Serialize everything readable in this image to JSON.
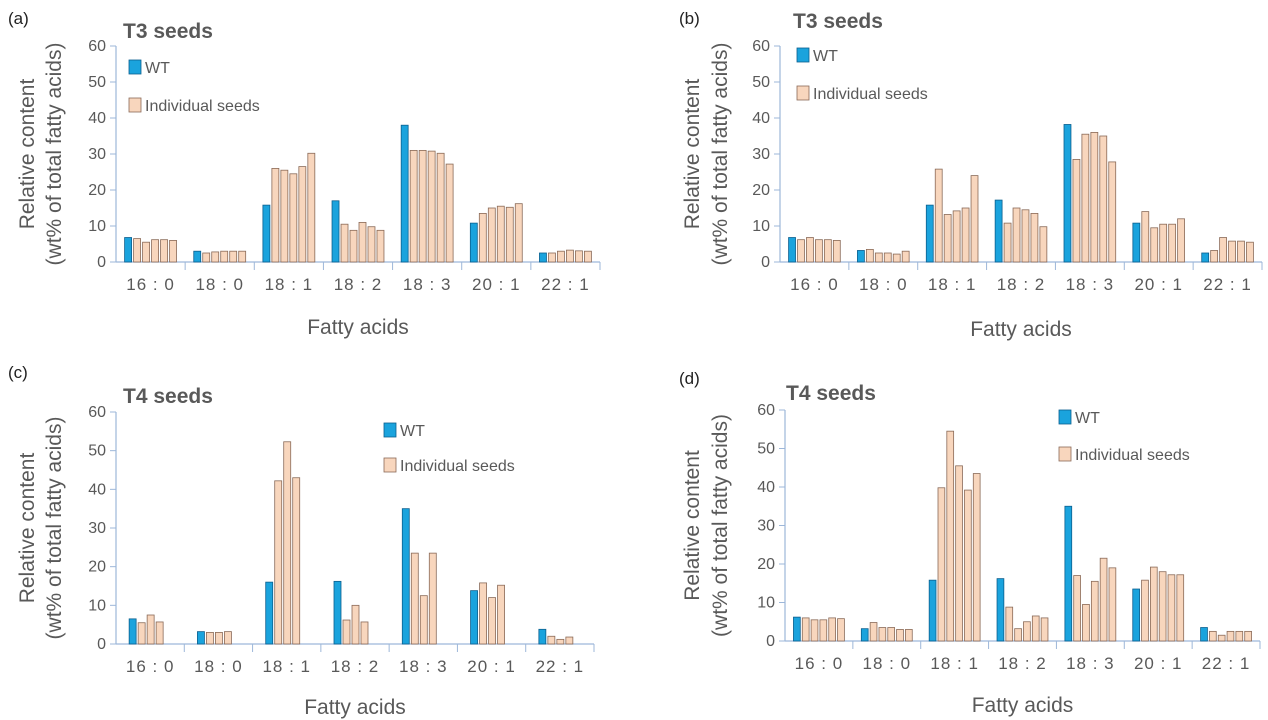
{
  "chart_data": [
    {
      "panel": "(a)",
      "type": "bar",
      "title": "T3 seeds",
      "xlabel": "Fatty acids",
      "ylabel": [
        "Relative content",
        "(wt% of total fatty acids)"
      ],
      "ylim": [
        0,
        60
      ],
      "yticks": [
        0,
        10,
        20,
        30,
        40,
        50,
        60
      ],
      "legend_position": "top-left",
      "colors": {
        "WT": "#1aa3dd",
        "Individual seeds": "#f8d6bd"
      },
      "categories": [
        "16:0",
        "18:0",
        "18:1",
        "18:2",
        "18:3",
        "20:1",
        "22:1"
      ],
      "series": [
        {
          "name": "WT",
          "values": [
            6.8,
            3.0,
            15.8,
            17.0,
            38.0,
            10.8,
            2.5
          ]
        },
        {
          "name": "Individual seeds",
          "values": [
            [
              6.5,
              5.5,
              6.2,
              6.2,
              6.0
            ],
            [
              2.5,
              2.8,
              3.0,
              3.0,
              3.0
            ],
            [
              26.0,
              25.5,
              24.5,
              26.5,
              30.2
            ],
            [
              10.5,
              8.8,
              11.0,
              9.8,
              8.8
            ],
            [
              31.0,
              31.0,
              30.8,
              30.2,
              27.2
            ],
            [
              13.5,
              15.0,
              15.5,
              15.2,
              16.2
            ],
            [
              2.5,
              3.0,
              3.3,
              3.1,
              3.0
            ]
          ]
        }
      ]
    },
    {
      "panel": "(b)",
      "type": "bar",
      "title": "T3 seeds",
      "xlabel": "Fatty acids",
      "ylabel": [
        "Relative content",
        "(wt% of total fatty acids)"
      ],
      "ylim": [
        0,
        60
      ],
      "yticks": [
        0,
        10,
        20,
        30,
        40,
        50,
        60
      ],
      "legend_position": "top-left",
      "colors": {
        "WT": "#1aa3dd",
        "Individual seeds": "#f8d6bd"
      },
      "categories": [
        "16:0",
        "18:0",
        "18:1",
        "18:2",
        "18:3",
        "20:1",
        "22:1"
      ],
      "series": [
        {
          "name": "WT",
          "values": [
            6.8,
            3.2,
            15.8,
            17.2,
            38.2,
            10.8,
            2.5
          ]
        },
        {
          "name": "Individual seeds",
          "values": [
            [
              6.2,
              6.8,
              6.2,
              6.2,
              6.0
            ],
            [
              3.5,
              2.5,
              2.5,
              2.2,
              3.0
            ],
            [
              25.8,
              13.2,
              14.2,
              15.0,
              24.0
            ],
            [
              10.8,
              15.0,
              14.5,
              13.5,
              9.8
            ],
            [
              28.5,
              35.5,
              36.0,
              35.0,
              27.8
            ],
            [
              14.0,
              9.5,
              10.5,
              10.5,
              12.0
            ],
            [
              3.2,
              6.8,
              5.8,
              5.8,
              5.5
            ]
          ]
        }
      ]
    },
    {
      "panel": "(c)",
      "type": "bar",
      "title": "T4 seeds",
      "xlabel": "Fatty acids",
      "ylabel": [
        "Relative content",
        "(wt% of total fatty acids)"
      ],
      "ylim": [
        0,
        60
      ],
      "yticks": [
        0,
        10,
        20,
        30,
        40,
        50,
        60
      ],
      "legend_position": "top-right",
      "colors": {
        "WT": "#1aa3dd",
        "Individual seeds": "#f8d6bd"
      },
      "categories": [
        "16:0",
        "18:0",
        "18:1",
        "18:2",
        "18:3",
        "20:1",
        "22:1"
      ],
      "series": [
        {
          "name": "WT",
          "values": [
            6.5,
            3.2,
            16.0,
            16.2,
            35.0,
            13.8,
            3.8
          ]
        },
        {
          "name": "Individual seeds",
          "values": [
            [
              5.5,
              7.5,
              5.7
            ],
            [
              3.0,
              3.0,
              3.2
            ],
            [
              42.2,
              52.3,
              43.0
            ],
            [
              6.2,
              10.0,
              5.7
            ],
            [
              23.5,
              12.5,
              23.5
            ],
            [
              15.8,
              12.0,
              15.2
            ],
            [
              2.0,
              1.2,
              1.8
            ]
          ]
        }
      ]
    },
    {
      "panel": "(d)",
      "type": "bar",
      "title": "T4 seeds",
      "xlabel": "Fatty acids",
      "ylabel": [
        "Relative content",
        "(wt% of total fatty acids)"
      ],
      "ylim": [
        0,
        60
      ],
      "yticks": [
        0,
        10,
        20,
        30,
        40,
        50,
        60
      ],
      "legend_position": "top-right",
      "colors": {
        "WT": "#1aa3dd",
        "Individual seeds": "#f8d6bd"
      },
      "categories": [
        "16:0",
        "18:0",
        "18:1",
        "18:2",
        "18:3",
        "20:1",
        "22:1"
      ],
      "series": [
        {
          "name": "WT",
          "values": [
            6.2,
            3.2,
            15.8,
            16.2,
            35.0,
            13.5,
            3.5
          ]
        },
        {
          "name": "Individual seeds",
          "values": [
            [
              6.0,
              5.5,
              5.5,
              6.0,
              5.8
            ],
            [
              4.8,
              3.5,
              3.5,
              3.0,
              3.0
            ],
            [
              39.8,
              54.5,
              45.5,
              39.2,
              43.5
            ],
            [
              8.8,
              3.2,
              5.0,
              6.5,
              6.0
            ],
            [
              17.0,
              9.5,
              15.5,
              21.5,
              19.0
            ],
            [
              15.8,
              19.2,
              18.0,
              17.2,
              17.2
            ],
            [
              2.5,
              1.5,
              2.5,
              2.5,
              2.5
            ]
          ]
        }
      ]
    }
  ]
}
